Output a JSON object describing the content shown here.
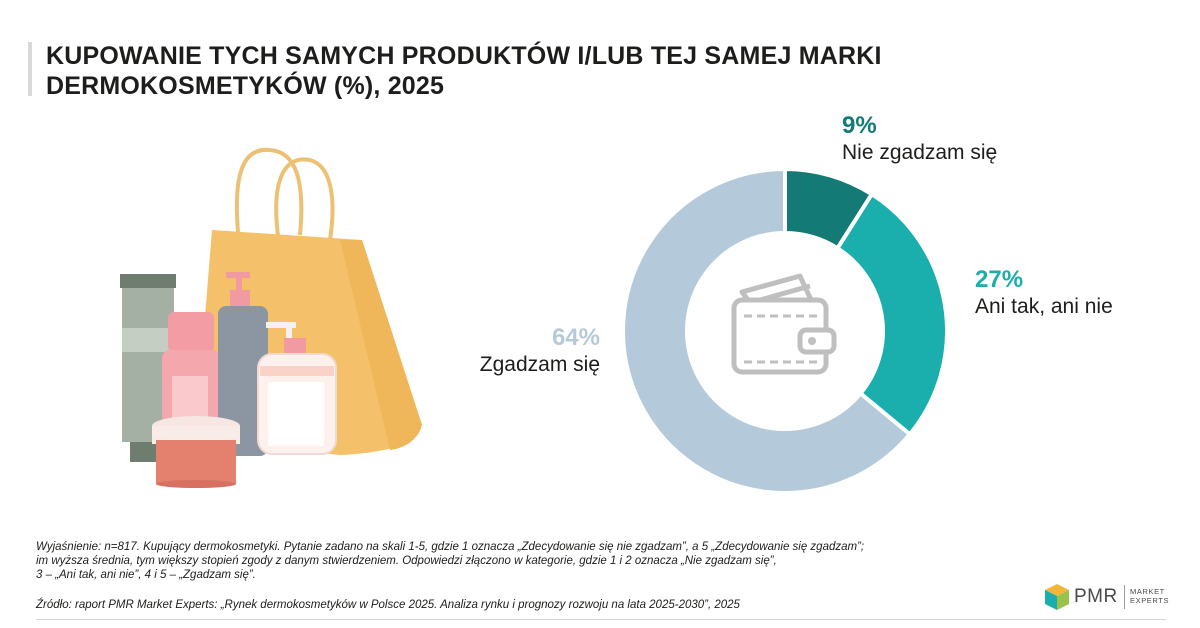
{
  "title": {
    "line1": "KUPOWANIE TYCH SAMYCH PRODUKTÓW I/LUB TEJ SAMEJ MARKI",
    "line2": "DERMOKOSMETYKÓW (%), 2025"
  },
  "chart_data": {
    "type": "pie",
    "title": "KUPOWANIE TYCH SAMYCH PRODUKTÓW I/LUB TEJ SAMEJ MARKI DERMOKOSMETYKÓW (%), 2025",
    "donut": true,
    "slices": [
      {
        "label": "Nie zgadzam się",
        "value": 9,
        "display": "9%",
        "color": "#137a76"
      },
      {
        "label": "Ani tak, ani nie",
        "value": 27,
        "display": "27%",
        "color": "#1aaead"
      },
      {
        "label": "Zgadzam się",
        "value": 64,
        "display": "64%",
        "color": "#b4cadb"
      }
    ],
    "center_icon": "wallet-icon"
  },
  "illustration": {
    "icon": "cosmetics-shopping-bag-illustration"
  },
  "notes": {
    "line1": "Wyjaśnienie: n=817. Kupujący dermokosmetyki. Pytanie zadano na skali 1-5, gdzie 1 oznacza „Zdecydowanie się nie zgadzam”, a 5 „Zdecydowanie się zgadzam”;",
    "line2": "im wyższa średnia, tym większy stopień zgody z danym stwierdzeniem. Odpowiedzi złączono w kategorie, gdzie 1 i 2 oznacza „Nie zgadzam się”,",
    "line3": "3 – „Ani tak, ani nie”, 4 i 5 – „Zgadzam się”."
  },
  "source": "Źródło: raport PMR Market Experts: „Rynek dermokosmetyków w Polsce 2025. Analiza rynku i prognozy rozwoju na lata 2025-2030”, 2025",
  "logo": {
    "name": "PMR",
    "sub1": "MARKET",
    "sub2": "EXPERTS",
    "icon": "pmr-cube-logo-icon"
  }
}
